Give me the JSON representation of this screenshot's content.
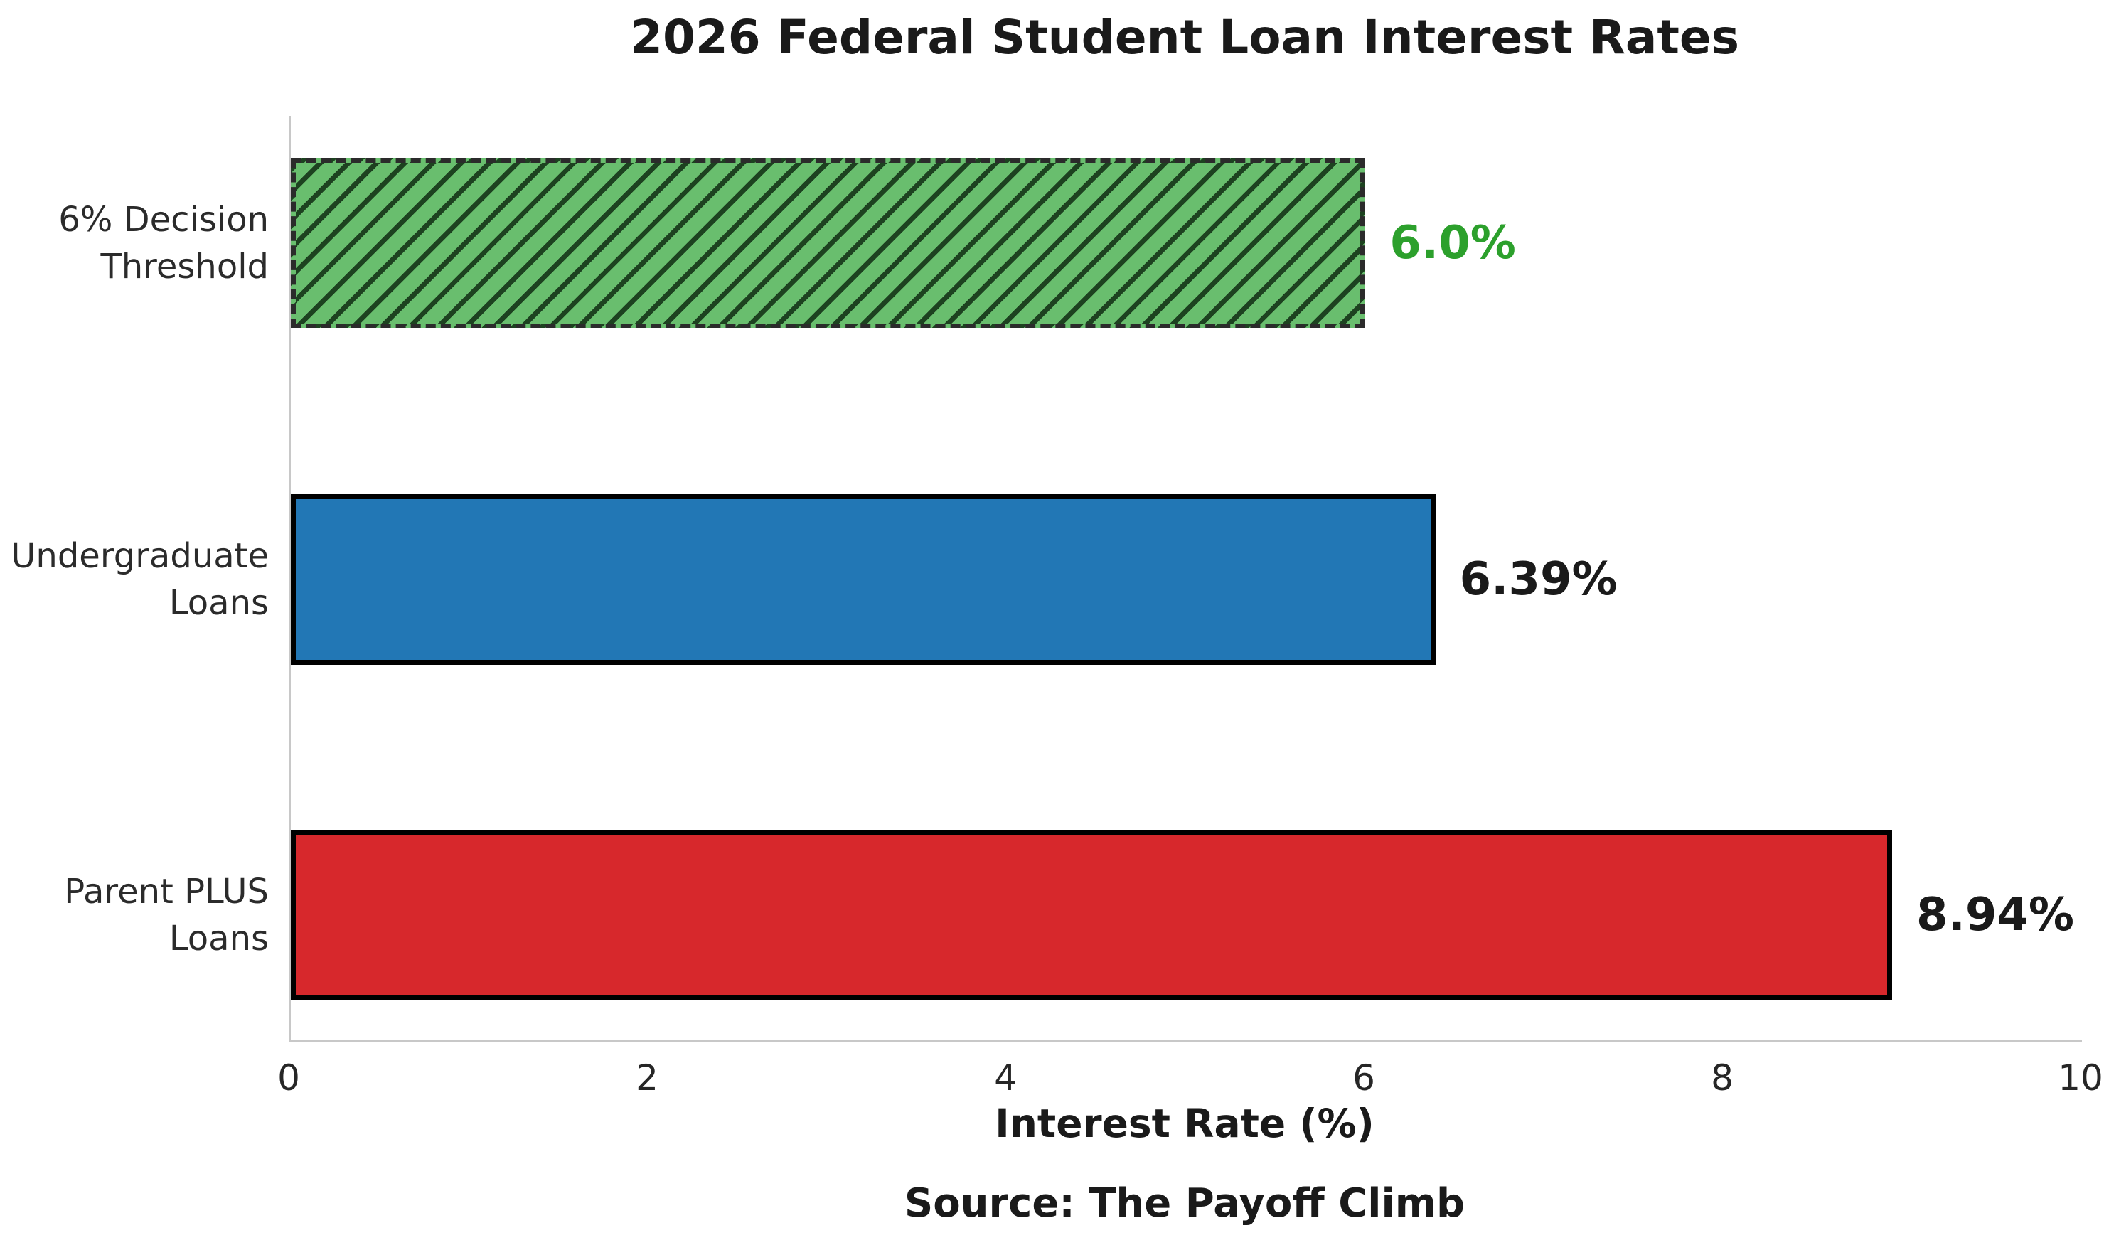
{
  "chart_data": {
    "type": "bar",
    "orientation": "horizontal",
    "title": "2026 Federal Student Loan Interest Rates",
    "xlabel": "Interest Rate (%)",
    "source": "Source: The Payoff Climb",
    "xlim": [
      0,
      10
    ],
    "xticks": [
      0,
      2,
      4,
      6,
      8,
      10
    ],
    "grid": false,
    "legend": false,
    "bars": [
      {
        "category_line1": "6% Decision",
        "category_line2": "Threshold",
        "value": 6.0,
        "value_label": "6.0%",
        "fill": "#69be6e",
        "hatch": "diagonal",
        "border_style": "dashed",
        "label_color": "#2ca02c"
      },
      {
        "category_line1": "Undergraduate",
        "category_line2": "Loans",
        "value": 6.39,
        "value_label": "6.39%",
        "fill": "#2277b5",
        "hatch": "none",
        "border_style": "solid",
        "label_color": "#1a1a1a"
      },
      {
        "category_line1": "Parent PLUS",
        "category_line2": "Loans",
        "value": 8.94,
        "value_label": "8.94%",
        "fill": "#d7282c",
        "hatch": "none",
        "border_style": "solid",
        "label_color": "#1a1a1a"
      }
    ],
    "colors": {
      "hatch_line": "#1d4220",
      "axis_spine": "#c8c8c8",
      "threshold_label_green": "#2ca02c",
      "text": "#1a1a1a"
    }
  }
}
